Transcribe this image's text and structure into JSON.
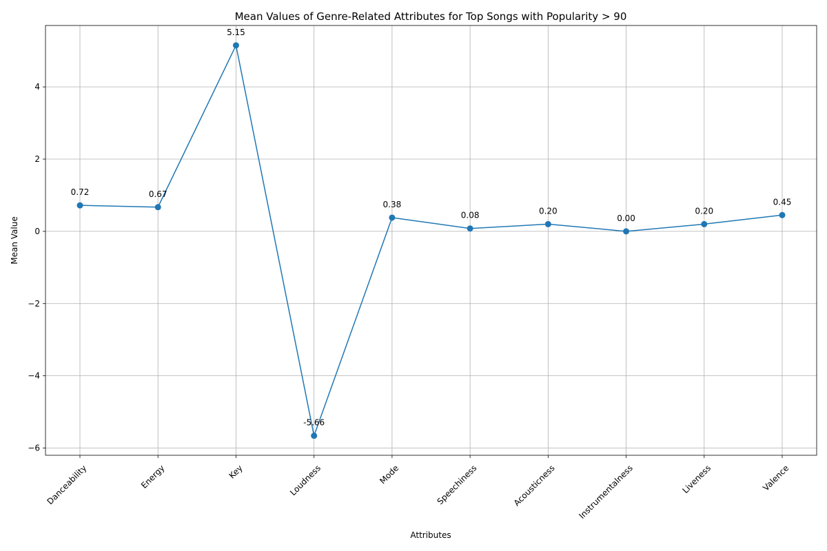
{
  "chart_data": {
    "type": "line",
    "title": "Mean Values of Genre-Related Attributes for Top Songs with Popularity > 90",
    "xlabel": "Attributes",
    "ylabel": "Mean Value",
    "categories": [
      "Danceability",
      "Energy",
      "Key",
      "Loudness",
      "Mode",
      "Speechiness",
      "Acousticness",
      "Instrumentalness",
      "Liveness",
      "Valence"
    ],
    "series": [
      {
        "values": [
          0.72,
          0.67,
          5.15,
          -5.66,
          0.38,
          0.08,
          0.2,
          0.0,
          0.2,
          0.45
        ],
        "labels": [
          "0.72",
          "0.67",
          "5.15",
          "-5.66",
          "0.38",
          "0.08",
          "0.20",
          "0.00",
          "0.20",
          "0.45"
        ],
        "color": "#1f77b4"
      }
    ],
    "ylim": [
      -6.2,
      5.7
    ],
    "yticks": [
      -6,
      -4,
      -2,
      0,
      2,
      4
    ],
    "ytick_labels": [
      "−6",
      "−4",
      "−2",
      "0",
      "2",
      "4"
    ],
    "grid": true,
    "marker": "circle"
  }
}
